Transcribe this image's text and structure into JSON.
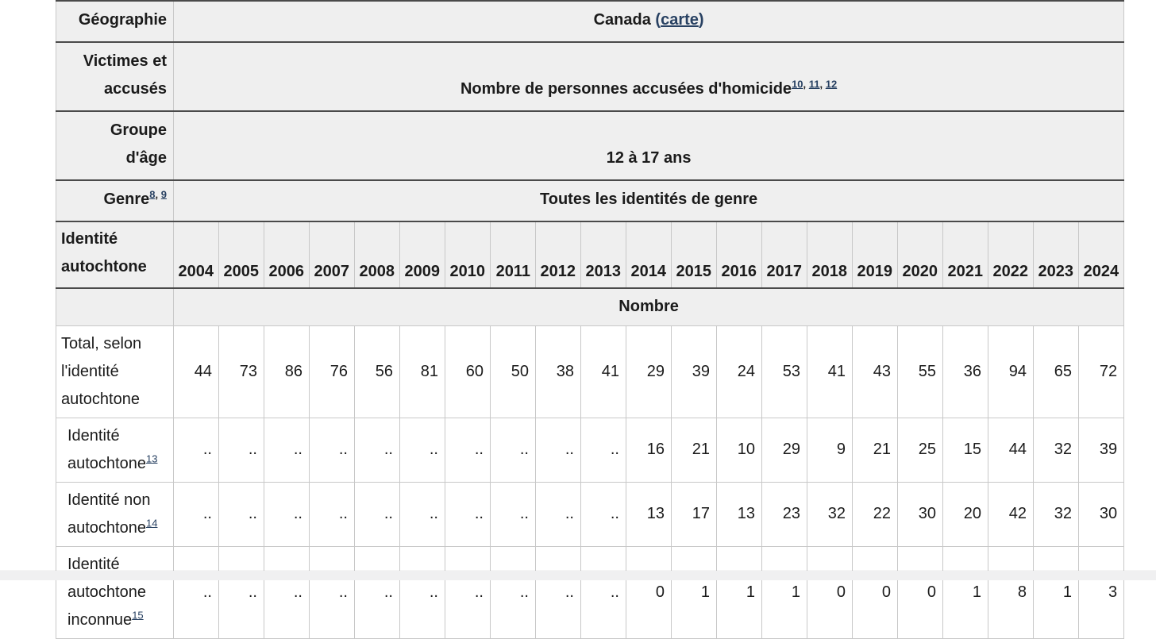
{
  "colors": {
    "header_bg": "#efefef",
    "dark_border": "#4a4a4a",
    "light_border": "#c8c8c8",
    "link": "#284162",
    "text": "#1b1b1b",
    "page_strip": "#f0f0f1"
  },
  "table": {
    "geography": {
      "label": "Géographie",
      "value": "Canada",
      "paren_open": "(",
      "map_link": "carte",
      "paren_close": ")"
    },
    "victims": {
      "label": "Victimes et accusés",
      "value": "Nombre de personnes accusées d'homicide",
      "footnotes": [
        "10",
        "11",
        "12"
      ]
    },
    "age_group": {
      "label": "Groupe d'âge",
      "value": "12 à 17 ans"
    },
    "gender": {
      "label": "Genre",
      "label_footnotes": [
        "8",
        "9"
      ],
      "value": "Toutes les identités de genre"
    },
    "identity_header": {
      "label": "Identité autochtone",
      "years": [
        "2004",
        "2005",
        "2006",
        "2007",
        "2008",
        "2009",
        "2010",
        "2011",
        "2012",
        "2013",
        "2014",
        "2015",
        "2016",
        "2017",
        "2018",
        "2019",
        "2020",
        "2021",
        "2022",
        "2023",
        "2024"
      ]
    },
    "unit_label": "Nombre",
    "missing_symbol": "..",
    "data_rows": [
      {
        "label": "Total, selon l'identité autochtone",
        "footnote": "",
        "indent": false,
        "values": [
          "44",
          "73",
          "86",
          "76",
          "56",
          "81",
          "60",
          "50",
          "38",
          "41",
          "29",
          "39",
          "24",
          "53",
          "41",
          "43",
          "55",
          "36",
          "94",
          "65",
          "72"
        ]
      },
      {
        "label": "Identité autochtone",
        "footnote": "13",
        "indent": true,
        "values": [
          "..",
          "..",
          "..",
          "..",
          "..",
          "..",
          "..",
          "..",
          "..",
          "..",
          "16",
          "21",
          "10",
          "29",
          "9",
          "21",
          "25",
          "15",
          "44",
          "32",
          "39"
        ]
      },
      {
        "label": "Identité non autochtone",
        "footnote": "14",
        "indent": true,
        "values": [
          "..",
          "..",
          "..",
          "..",
          "..",
          "..",
          "..",
          "..",
          "..",
          "..",
          "13",
          "17",
          "13",
          "23",
          "32",
          "22",
          "30",
          "20",
          "42",
          "32",
          "30"
        ]
      },
      {
        "label": "Identité autochtone inconnue",
        "footnote": "15",
        "indent": true,
        "values": [
          "..",
          "..",
          "..",
          "..",
          "..",
          "..",
          "..",
          "..",
          "..",
          "..",
          "0",
          "1",
          "1",
          "1",
          "0",
          "0",
          "0",
          "1",
          "8",
          "1",
          "3"
        ]
      }
    ]
  }
}
